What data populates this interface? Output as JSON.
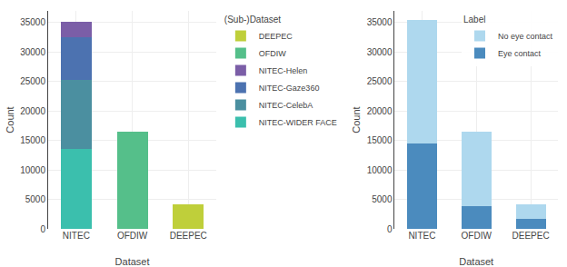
{
  "chart_data": [
    {
      "type": "bar",
      "stacked": true,
      "grid": true,
      "legend": "right",
      "title": "(Sub-)Dataset",
      "xlabel": "Dataset",
      "ylabel": "Count",
      "categories": [
        "NITEC",
        "OFDIW",
        "DEEPEC"
      ],
      "series": [
        {
          "name": "NITEC-WIDER FACE",
          "values": [
            13500,
            0,
            0
          ],
          "color": "#3BBFAD"
        },
        {
          "name": "NITEC-CelebA",
          "values": [
            11800,
            0,
            0
          ],
          "color": "#4B8FA0"
        },
        {
          "name": "NITEC-Gaze360",
          "values": [
            7200,
            0,
            0
          ],
          "color": "#4C72B0"
        },
        {
          "name": "NITEC-Helen",
          "values": [
            2700,
            0,
            0
          ],
          "color": "#7B5EA7"
        },
        {
          "name": "OFDIW",
          "values": [
            0,
            16500,
            0
          ],
          "color": "#55BF8A"
        },
        {
          "name": "DEEPEC",
          "values": [
            0,
            0,
            4200
          ],
          "color": "#BFCF3A"
        }
      ],
      "ylim": [
        0,
        37000
      ],
      "yticks": [
        0,
        5000,
        10000,
        15000,
        20000,
        25000,
        30000,
        35000
      ]
    },
    {
      "type": "bar",
      "stacked": true,
      "grid": true,
      "legend": "upper right",
      "title": "Label",
      "xlabel": "Dataset",
      "ylabel": "Count",
      "categories": [
        "NITEC",
        "OFDIW",
        "DEEPEC"
      ],
      "series": [
        {
          "name": "Eye contact",
          "values": [
            14500,
            3800,
            1700
          ],
          "color": "#4B8BBE"
        },
        {
          "name": "No eye contact",
          "values": [
            21000,
            12700,
            2500
          ],
          "color": "#AED8EE"
        }
      ],
      "ylim": [
        0,
        37000
      ],
      "yticks": [
        0,
        5000,
        10000,
        15000,
        20000,
        25000,
        30000,
        35000
      ]
    }
  ]
}
